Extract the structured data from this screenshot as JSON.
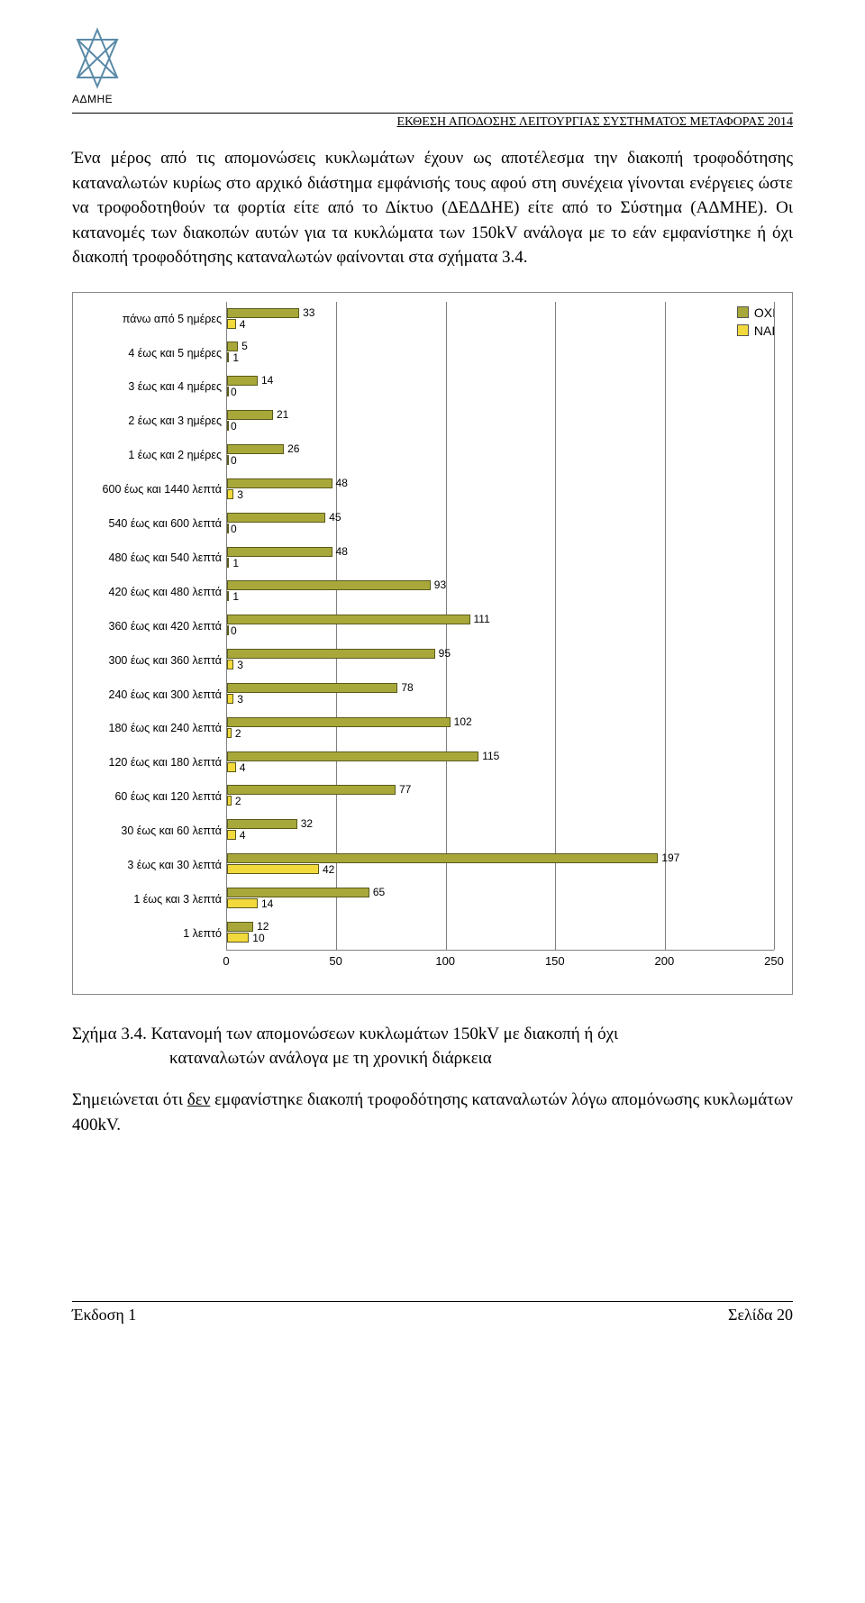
{
  "logo_caption": "ΑΔΜΗΕ",
  "header_title": "ΕΚΘΕΣΗ ΑΠΟΔΟΣΗΣ ΛΕΙΤΟΥΡΓΙΑΣ ΣΥΣΤΗΜΑΤΟΣ ΜΕΤΑΦΟΡΑΣ 2014",
  "paragraph": "Ένα μέρος από τις απομονώσεις κυκλωμάτων έχουν ως αποτέλεσμα την διακοπή τροφοδότησης καταναλωτών κυρίως στο αρχικό διάστημα εμφάνισής τους αφού στη συνέχεια γίνονται ενέργειες ώστε να τροφοδοτηθούν τα φορτία είτε από το Δίκτυο (ΔΕΔΔΗΕ) είτε από το Σύστημα (ΑΔΜΗΕ). Οι κατανομές των διακοπών αυτών για τα κυκλώματα των 150kV ανάλογα με το εάν εμφανίστηκε ή όχι διακοπή τροφοδότησης καταναλωτών φαίνονται στα σχήματα 3.4.",
  "legend": {
    "ochi": "ΟΧΙ",
    "nai": "ΝΑΙ"
  },
  "chart": {
    "type": "bar",
    "orientation": "horizontal",
    "categories": [
      "πάνω από 5 ημέρες",
      "4 έως και 5 ημέρες",
      "3 έως και 4 ημέρες",
      "2 έως και 3 ημέρες",
      "1 έως και 2 ημέρες",
      "600 έως και 1440 λεπτά",
      "540 έως και 600 λεπτά",
      "480 έως και 540 λεπτά",
      "420 έως και 480 λεπτά",
      "360 έως και 420 λεπτά",
      "300 έως και 360 λεπτά",
      "240 έως και 300 λεπτά",
      "180 έως και 240 λεπτά",
      "120 έως και 180 λεπτά",
      "60 έως και 120 λεπτά",
      "30 έως και 60 λεπτά",
      "3 έως και 30 λεπτά",
      "1 έως και 3 λεπτά",
      "1 λεπτό"
    ],
    "series": [
      {
        "name": "ΟΧΙ",
        "color": "#a8a83a",
        "values": [
          33,
          5,
          14,
          21,
          26,
          48,
          45,
          48,
          93,
          111,
          95,
          78,
          102,
          115,
          77,
          32,
          197,
          65,
          12
        ]
      },
      {
        "name": "ΝΑΙ",
        "color": "#f2d93c",
        "values": [
          4,
          1,
          0,
          0,
          0,
          3,
          0,
          1,
          1,
          0,
          3,
          3,
          2,
          4,
          2,
          4,
          42,
          14,
          10
        ]
      }
    ],
    "x_axis": {
      "min": 0,
      "max": 250,
      "step": 50,
      "ticks": [
        0,
        50,
        100,
        150,
        200,
        250
      ]
    },
    "bar_border_color": "#5a5a1c",
    "grid_color": "#808080",
    "background_color": "#ffffff",
    "label_fontsize": 12
  },
  "caption_lead": "Σχήμα 3.4. ",
  "caption_rest_line1": "Κατανομή των απομονώσεων κυκλωμάτων 150kV με διακοπή ή όχι",
  "caption_rest_line2": "καταναλωτών ανάλογα με τη χρονική διάρκεια",
  "note_pre": "Σημειώνεται ότι ",
  "note_underlined": "δεν",
  "note_post": " εμφανίστηκε διακοπή τροφοδότησης καταναλωτών λόγω απομόνωσης κυκλωμάτων 400kV.",
  "footer_left": "Έκδοση 1",
  "footer_right": "Σελίδα 20"
}
